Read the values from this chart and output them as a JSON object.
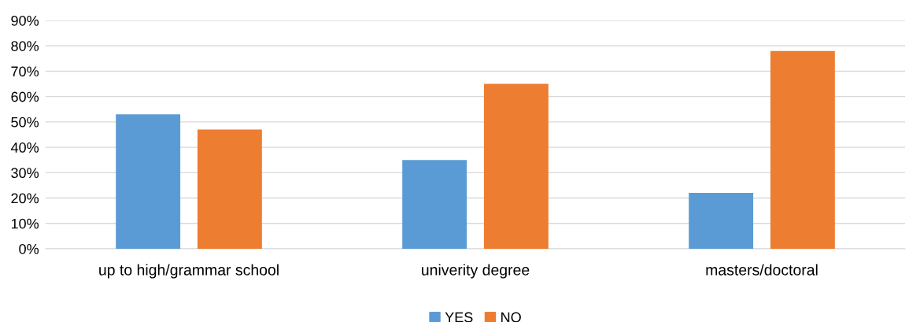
{
  "chart_data": {
    "type": "bar",
    "categories": [
      "up to high/grammar school",
      "univerity degree",
      "masters/doctoral"
    ],
    "series": [
      {
        "name": "YES",
        "color": "#5b9bd5",
        "values": [
          53,
          35,
          22
        ]
      },
      {
        "name": "NO",
        "color": "#ed7d31",
        "values": [
          47,
          65,
          78
        ]
      }
    ],
    "ylim": [
      0,
      90
    ],
    "yticks": [
      {
        "value": 0,
        "label": "0%"
      },
      {
        "value": 10,
        "label": "10%"
      },
      {
        "value": 20,
        "label": "20%"
      },
      {
        "value": 30,
        "label": "30%"
      },
      {
        "value": 40,
        "label": "40%"
      },
      {
        "value": 50,
        "label": "50%"
      },
      {
        "value": 60,
        "label": "60%"
      },
      {
        "value": 70,
        "label": "70%"
      },
      {
        "value": 80,
        "label": "80%"
      },
      {
        "value": 90,
        "label": "90%"
      }
    ],
    "grid": "y",
    "legend": "bottom"
  }
}
